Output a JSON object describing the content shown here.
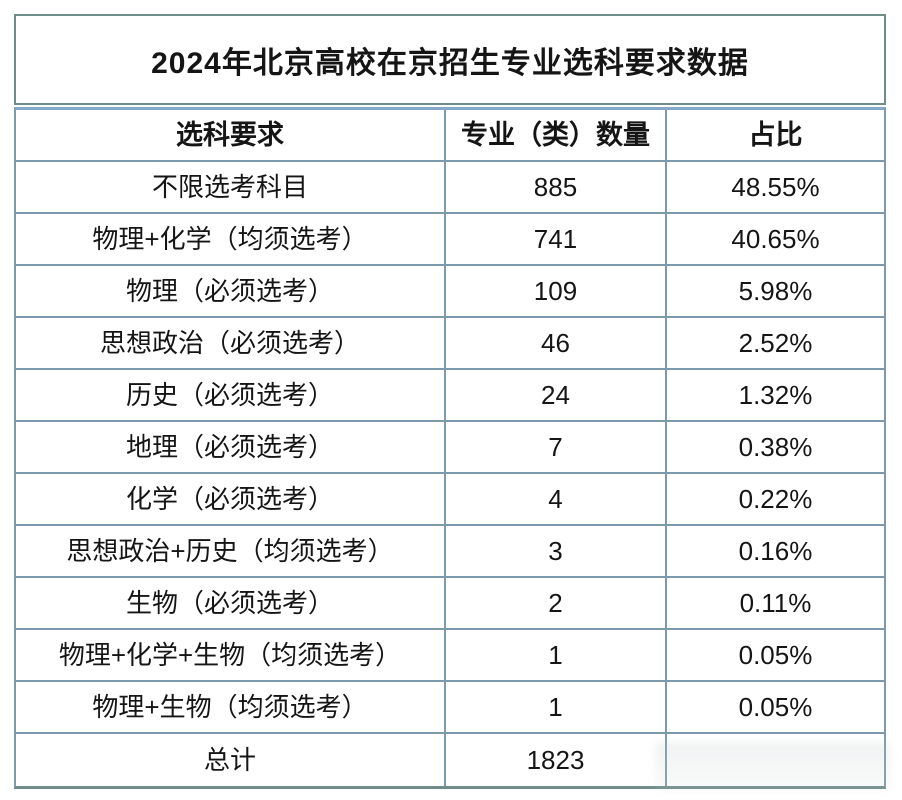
{
  "title": "2024年北京高校在京招生专业选科要求数据",
  "table": {
    "columns": [
      "选科要求",
      "专业（类）数量",
      "占比"
    ],
    "rows": [
      {
        "requirement": "不限选考科目",
        "count": "885",
        "percent": "48.55%"
      },
      {
        "requirement": "物理+化学（均须选考）",
        "count": "741",
        "percent": "40.65%"
      },
      {
        "requirement": "物理（必须选考）",
        "count": "109",
        "percent": "5.98%"
      },
      {
        "requirement": "思想政治（必须选考）",
        "count": "46",
        "percent": "2.52%"
      },
      {
        "requirement": "历史（必须选考）",
        "count": "24",
        "percent": "1.32%"
      },
      {
        "requirement": "地理（必须选考）",
        "count": "7",
        "percent": "0.38%"
      },
      {
        "requirement": "化学（必须选考）",
        "count": "4",
        "percent": "0.22%"
      },
      {
        "requirement": "思想政治+历史（均须选考）",
        "count": "3",
        "percent": "0.16%"
      },
      {
        "requirement": "生物（必须选考）",
        "count": "2",
        "percent": "0.11%"
      },
      {
        "requirement": "物理+化学+生物（均须选考）",
        "count": "1",
        "percent": "0.05%"
      },
      {
        "requirement": "物理+生物（均须选考）",
        "count": "1",
        "percent": "0.05%"
      },
      {
        "requirement": "总计",
        "count": "1823",
        "percent": ""
      }
    ]
  },
  "chart_data": {
    "type": "table",
    "title": "2024年北京高校在京招生专业选科要求数据",
    "columns": [
      "选科要求",
      "专业（类）数量",
      "占比"
    ],
    "categories": [
      "不限选考科目",
      "物理+化学（均须选考）",
      "物理（必须选考）",
      "思想政治（必须选考）",
      "历史（必须选考）",
      "地理（必须选考）",
      "化学（必须选考）",
      "思想政治+历史（均须选考）",
      "生物（必须选考）",
      "物理+化学+生物（均须选考）",
      "物理+生物（均须选考）"
    ],
    "counts": [
      885,
      741,
      109,
      46,
      24,
      7,
      4,
      3,
      2,
      1,
      1
    ],
    "percents": [
      "48.55%",
      "40.65%",
      "5.98%",
      "2.52%",
      "1.32%",
      "0.38%",
      "0.22%",
      "0.16%",
      "0.11%",
      "0.05%",
      "0.05%"
    ],
    "total_label": "总计",
    "total_count": 1823
  },
  "colors": {
    "grid": "#7d99ab",
    "outer": "#6f8d89",
    "header_accent": "#85a8c6",
    "text": "#151515",
    "background": "#ffffff"
  }
}
